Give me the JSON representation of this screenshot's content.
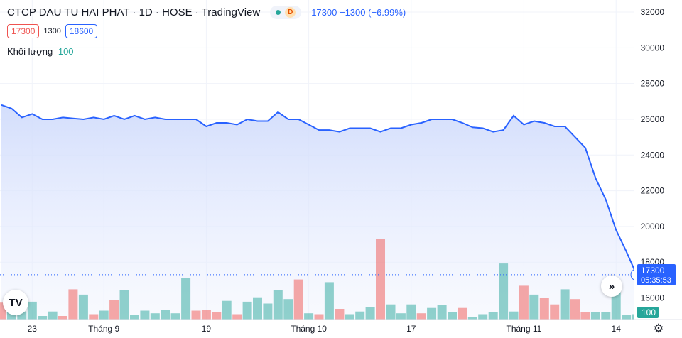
{
  "header": {
    "title": "CTCP DAU TU HAI PHAT · 1D · HOSE · TradingView",
    "market_badge": "D",
    "last": "17300",
    "change": "−1300",
    "change_pct": "(−6.99%)"
  },
  "ohlc": {
    "low_box": "17300",
    "mid": "1300",
    "high_box": "18600"
  },
  "volume_legend": {
    "label": "Khối lượng",
    "value": "100"
  },
  "price_label": {
    "value": "17300",
    "countdown": "05:35:53"
  },
  "volume_label": "100",
  "icons": {
    "logo": "tradingview-logo-icon",
    "scroll": "double-chevron-right-icon",
    "settings": "gear-icon"
  },
  "colors": {
    "line": "#2962ff",
    "up": "#26a69a",
    "down": "#ef5350",
    "fill": "#dbe4fd"
  },
  "chart_data": {
    "type": "area",
    "price_series": [
      26800,
      26600,
      26100,
      26300,
      26000,
      26000,
      26100,
      26050,
      26000,
      26100,
      26000,
      26200,
      26000,
      26200,
      26000,
      26100,
      26000,
      26000,
      26000,
      26000,
      25600,
      25800,
      25800,
      25700,
      26000,
      25900,
      25900,
      26400,
      26000,
      26000,
      25700,
      25400,
      25400,
      25300,
      25500,
      25500,
      25500,
      25300,
      25500,
      25500,
      25700,
      25800,
      26000,
      26000,
      26000,
      25800,
      25550,
      25500,
      25300,
      25400,
      26200,
      25700,
      25900,
      25800,
      25600,
      25600,
      25000,
      24400,
      22700,
      21500,
      19800,
      18600,
      17300
    ],
    "volume_series": [
      {
        "v": 19,
        "d": "down"
      },
      {
        "v": 16,
        "d": "up"
      },
      {
        "v": 9,
        "d": "up"
      },
      {
        "v": 20,
        "d": "up"
      },
      {
        "v": 4,
        "d": "up"
      },
      {
        "v": 9,
        "d": "up"
      },
      {
        "v": 4,
        "d": "down"
      },
      {
        "v": 34,
        "d": "down"
      },
      {
        "v": 28,
        "d": "up"
      },
      {
        "v": 6,
        "d": "down"
      },
      {
        "v": 10,
        "d": "up"
      },
      {
        "v": 22,
        "d": "down"
      },
      {
        "v": 33,
        "d": "up"
      },
      {
        "v": 5,
        "d": "up"
      },
      {
        "v": 10,
        "d": "up"
      },
      {
        "v": 7,
        "d": "up"
      },
      {
        "v": 11,
        "d": "up"
      },
      {
        "v": 7,
        "d": "up"
      },
      {
        "v": 47,
        "d": "up"
      },
      {
        "v": 10,
        "d": "down"
      },
      {
        "v": 11,
        "d": "down"
      },
      {
        "v": 8,
        "d": "down"
      },
      {
        "v": 21,
        "d": "up"
      },
      {
        "v": 6,
        "d": "down"
      },
      {
        "v": 20,
        "d": "up"
      },
      {
        "v": 25,
        "d": "up"
      },
      {
        "v": 18,
        "d": "up"
      },
      {
        "v": 33,
        "d": "up"
      },
      {
        "v": 23,
        "d": "up"
      },
      {
        "v": 45,
        "d": "down"
      },
      {
        "v": 7,
        "d": "up"
      },
      {
        "v": 6,
        "d": "down"
      },
      {
        "v": 42,
        "d": "up"
      },
      {
        "v": 12,
        "d": "down"
      },
      {
        "v": 6,
        "d": "up"
      },
      {
        "v": 9,
        "d": "up"
      },
      {
        "v": 14,
        "d": "up"
      },
      {
        "v": 91,
        "d": "down"
      },
      {
        "v": 17,
        "d": "up"
      },
      {
        "v": 7,
        "d": "up"
      },
      {
        "v": 17,
        "d": "up"
      },
      {
        "v": 7,
        "d": "down"
      },
      {
        "v": 13,
        "d": "up"
      },
      {
        "v": 16,
        "d": "up"
      },
      {
        "v": 8,
        "d": "up"
      },
      {
        "v": 13,
        "d": "down"
      },
      {
        "v": 3,
        "d": "up"
      },
      {
        "v": 6,
        "d": "up"
      },
      {
        "v": 8,
        "d": "up"
      },
      {
        "v": 63,
        "d": "up"
      },
      {
        "v": 9,
        "d": "up"
      },
      {
        "v": 38,
        "d": "down"
      },
      {
        "v": 28,
        "d": "up"
      },
      {
        "v": 24,
        "d": "down"
      },
      {
        "v": 17,
        "d": "down"
      },
      {
        "v": 34,
        "d": "up"
      },
      {
        "v": 23,
        "d": "down"
      },
      {
        "v": 8,
        "d": "down"
      },
      {
        "v": 8,
        "d": "up"
      },
      {
        "v": 8,
        "d": "up"
      },
      {
        "v": 32,
        "d": "up"
      },
      {
        "v": 5,
        "d": "up"
      },
      {
        "v": 6,
        "d": "up"
      }
    ],
    "x_ticks": [
      {
        "label": "23",
        "i": 3
      },
      {
        "label": "Tháng 9",
        "i": 10
      },
      {
        "label": "19",
        "i": 20
      },
      {
        "label": "Tháng 10",
        "i": 30
      },
      {
        "label": "17",
        "i": 40
      },
      {
        "label": "Tháng 11",
        "i": 51
      },
      {
        "label": "14",
        "i": 60
      }
    ],
    "y_ticks": [
      16000,
      18000,
      20000,
      22000,
      24000,
      26000,
      28000,
      30000,
      32000
    ],
    "ylim": [
      15500,
      32300
    ],
    "last_price": 17300,
    "grid": true
  }
}
